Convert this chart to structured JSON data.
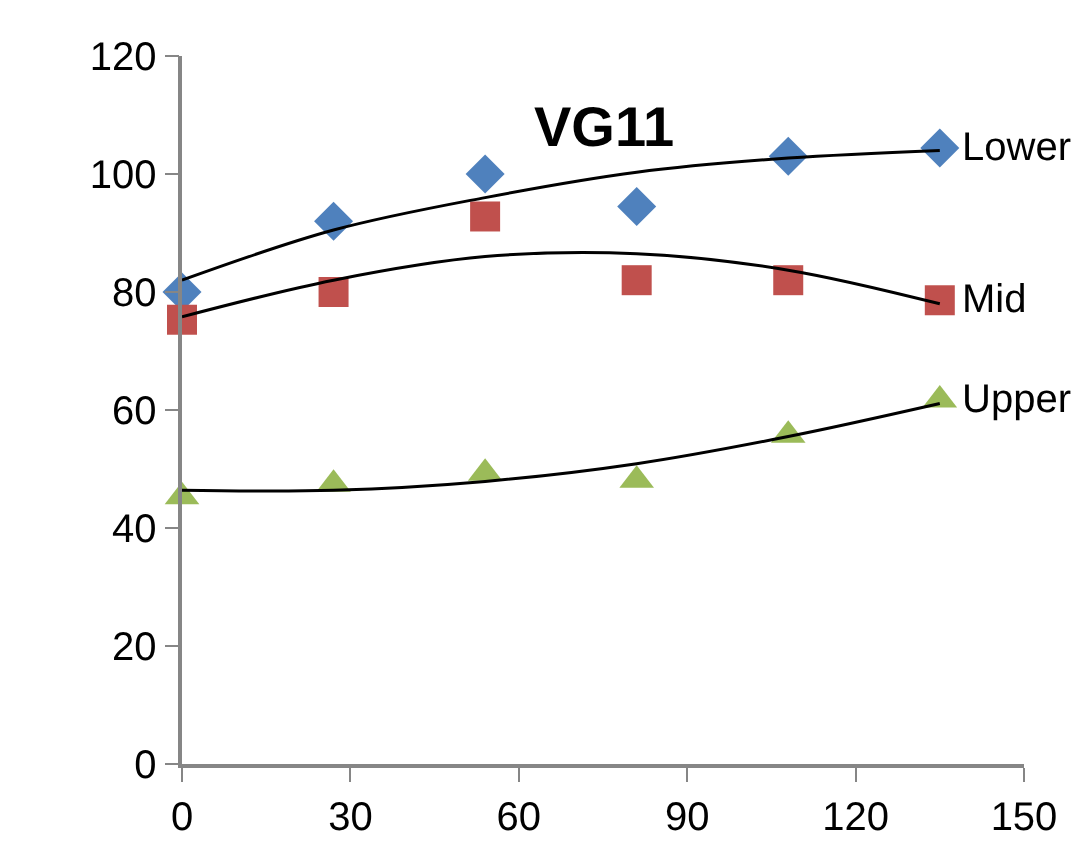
{
  "chart_data": {
    "type": "scatter",
    "title": "VG11",
    "xlim": [
      0,
      150
    ],
    "xticks": [
      0,
      30,
      60,
      90,
      120,
      150
    ],
    "ylim": [
      0,
      120
    ],
    "yticks": [
      0,
      20,
      40,
      60,
      80,
      100,
      120
    ],
    "legend": false,
    "series": [
      {
        "name": "Lower",
        "color": "#4f81bd",
        "marker": "diamond",
        "x": [
          0,
          27,
          54,
          81,
          108,
          135
        ],
        "values": [
          80,
          92,
          100,
          94.5,
          103,
          104.4
        ]
      },
      {
        "name": "Mid",
        "color": "#c0504d",
        "marker": "square",
        "x": [
          0,
          27,
          54,
          81,
          108,
          135
        ],
        "values": [
          75.3,
          80,
          92.8,
          82,
          82,
          78.6
        ]
      },
      {
        "name": "Upper",
        "color": "#9bbb59",
        "marker": "triangle",
        "x": [
          0,
          27,
          54,
          81,
          108,
          135
        ],
        "values": [
          45.3,
          47.4,
          49.3,
          48.1,
          55.7,
          61.7
        ]
      },
      {
        "type": "line",
        "color": "#000000",
        "marker": "none",
        "x": [
          0,
          27,
          54,
          81,
          108,
          135
        ],
        "values": [
          82,
          90.5,
          96,
          100.3,
          102.7,
          104
        ]
      },
      {
        "type": "line",
        "color": "#000000",
        "marker": "none",
        "x": [
          0,
          27,
          54,
          81,
          108,
          135
        ],
        "values": [
          75.8,
          82,
          86,
          86.5,
          83.7,
          78
        ]
      },
      {
        "type": "line",
        "color": "#000000",
        "marker": "none",
        "x": [
          0,
          27,
          54,
          81,
          108,
          135
        ],
        "values": [
          46.4,
          46.4,
          47.9,
          50.9,
          55.5,
          61.1
        ]
      }
    ]
  }
}
